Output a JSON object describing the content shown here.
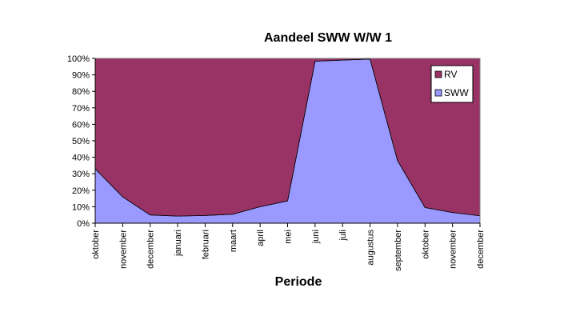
{
  "chart_data": {
    "type": "area",
    "stacked": true,
    "percent_stacked": true,
    "title": "Aandeel SWW W/W 1",
    "xlabel": "Periode",
    "ylabel": "",
    "ylim": [
      0,
      100
    ],
    "y_ticks": [
      "0%",
      "10%",
      "20%",
      "30%",
      "40%",
      "50%",
      "60%",
      "70%",
      "80%",
      "90%",
      "100%"
    ],
    "categories": [
      "oktober",
      "november",
      "december",
      "januari",
      "februari",
      "maart",
      "april",
      "mei",
      "juni",
      "juli",
      "augustus",
      "september",
      "oktober",
      "november",
      "december"
    ],
    "series": [
      {
        "name": "SWW",
        "color": "#9999ff",
        "values": [
          33,
          16,
          5,
          4.3,
          4.7,
          5.4,
          10,
          13.5,
          98.3,
          99,
          99.6,
          38,
          9.5,
          6.5,
          4.5
        ]
      },
      {
        "name": "RV",
        "color": "#993366",
        "values": [
          67,
          84,
          95,
          95.7,
          95.3,
          94.6,
          90,
          86.5,
          1.7,
          1,
          0.4,
          62,
          90.5,
          93.5,
          95.5
        ]
      }
    ],
    "legend": {
      "position": "top-right",
      "entries": [
        "RV",
        "SWW"
      ]
    },
    "grid": false,
    "plot_background": "#c0c0c0"
  }
}
